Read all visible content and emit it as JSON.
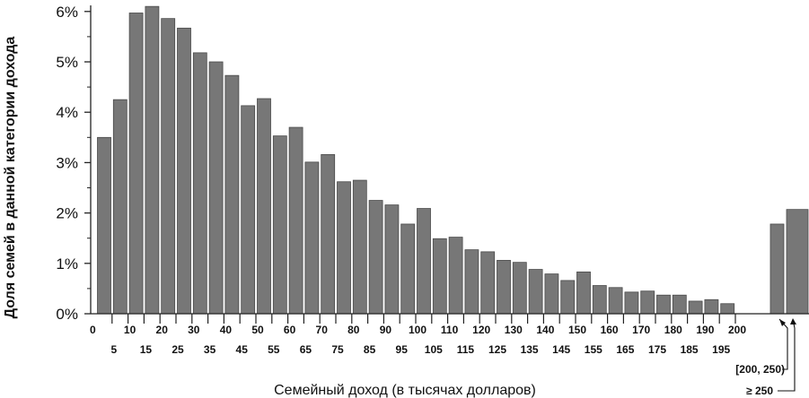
{
  "chart_data": {
    "type": "bar",
    "xlabel": "Семейный доход (в тысячах долларов)",
    "ylabel": "Доля семей в данной категории дохода",
    "ylim": [
      0,
      6.2
    ],
    "yticks": [
      "0%",
      "1%",
      "2%",
      "3%",
      "4%",
      "5%",
      "6%"
    ],
    "ytick_values": [
      0,
      1,
      2,
      3,
      4,
      5,
      6
    ],
    "bar_color": "#777777",
    "bar_outline": "#4a4a4a",
    "categories": [
      "0",
      "5",
      "10",
      "15",
      "20",
      "25",
      "30",
      "35",
      "40",
      "45",
      "50",
      "55",
      "60",
      "65",
      "70",
      "75",
      "80",
      "85",
      "90",
      "95",
      "100",
      "105",
      "110",
      "115",
      "120",
      "125",
      "130",
      "135",
      "140",
      "145",
      "150",
      "155",
      "160",
      "165",
      "170",
      "175",
      "180",
      "185",
      "190",
      "195",
      "[200, 250)",
      "≥ 250"
    ],
    "values": [
      3.5,
      4.25,
      5.97,
      6.1,
      5.86,
      5.67,
      5.18,
      5.0,
      4.73,
      4.13,
      4.27,
      3.53,
      3.7,
      3.01,
      3.16,
      2.62,
      2.65,
      2.25,
      2.16,
      1.78,
      2.09,
      1.49,
      1.52,
      1.27,
      1.23,
      1.06,
      1.02,
      0.88,
      0.79,
      0.66,
      0.83,
      0.56,
      0.52,
      0.43,
      0.45,
      0.37,
      0.37,
      0.25,
      0.28,
      0.2,
      1.78,
      2.07
    ],
    "xtick_top": [
      "0",
      "10",
      "20",
      "30",
      "40",
      "50",
      "60",
      "70",
      "80",
      "90",
      "100",
      "110",
      "120",
      "130",
      "140",
      "150",
      "160",
      "170",
      "180",
      "190",
      "200"
    ],
    "xtick_bottom": [
      "5",
      "15",
      "25",
      "35",
      "45",
      "55",
      "65",
      "75",
      "85",
      "95",
      "105",
      "115",
      "125",
      "135",
      "145",
      "155",
      "165",
      "175",
      "185",
      "195"
    ],
    "annotations": [
      "[200, 250)",
      "≥ 250"
    ]
  }
}
